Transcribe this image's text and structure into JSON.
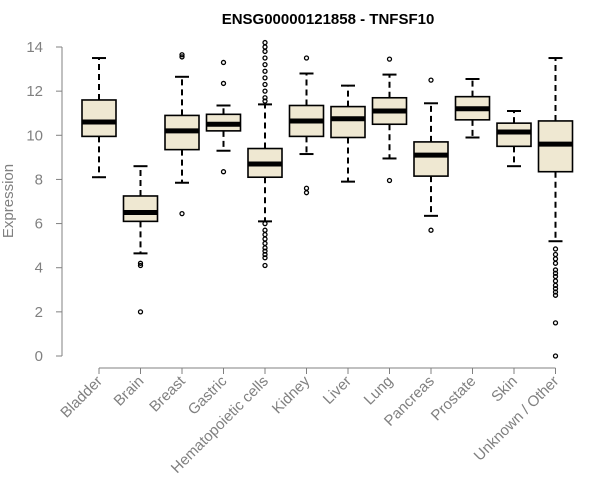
{
  "chart_data": {
    "type": "boxplot",
    "title": "ENSG00000121858 - TNFSF10",
    "xlabel": "",
    "ylabel": "Expression",
    "ylim": [
      0,
      14
    ],
    "yticks": [
      0,
      2,
      4,
      6,
      8,
      10,
      12,
      14
    ],
    "grid": false,
    "legend": "none",
    "colors": {
      "box_fill": "#efe8d2",
      "stroke": "#000000",
      "axis": "#808080",
      "label": "#808080",
      "title": "#000000"
    },
    "categories": [
      "Bladder",
      "Brain",
      "Breast",
      "Gastric",
      "Hematopoietic cells",
      "Kidney",
      "Liver",
      "Lung",
      "Pancreas",
      "Prostate",
      "Skin",
      "Unknown / Other"
    ],
    "boxes": [
      {
        "label": "Bladder",
        "whisker_low": 8.1,
        "q1": 9.95,
        "median": 10.6,
        "q3": 11.6,
        "whisker_high": 13.5,
        "outliers": []
      },
      {
        "label": "Brain",
        "whisker_low": 4.65,
        "q1": 6.1,
        "median": 6.5,
        "q3": 7.25,
        "whisker_high": 8.6,
        "outliers": [
          4.1,
          4.2,
          2.0
        ]
      },
      {
        "label": "Breast",
        "whisker_low": 7.85,
        "q1": 9.35,
        "median": 10.2,
        "q3": 10.9,
        "whisker_high": 12.65,
        "outliers": [
          13.55,
          13.65,
          6.45
        ]
      },
      {
        "label": "Gastric",
        "whisker_low": 9.3,
        "q1": 10.2,
        "median": 10.5,
        "q3": 10.95,
        "whisker_high": 11.35,
        "outliers": [
          13.3,
          12.35,
          8.35
        ]
      },
      {
        "label": "Hematopoietic cells",
        "whisker_low": 6.1,
        "q1": 8.1,
        "median": 8.7,
        "q3": 9.4,
        "whisker_high": 11.4,
        "outliers": [
          14.2,
          14.0,
          13.8,
          13.5,
          13.2,
          12.9,
          12.6,
          12.3,
          12.0,
          11.7,
          11.55,
          6.0,
          5.7,
          5.5,
          5.3,
          5.1,
          4.9,
          4.75,
          4.6,
          4.45,
          4.1
        ]
      },
      {
        "label": "Kidney",
        "whisker_low": 9.15,
        "q1": 9.95,
        "median": 10.65,
        "q3": 11.35,
        "whisker_high": 12.8,
        "outliers": [
          13.5,
          7.6,
          7.4
        ]
      },
      {
        "label": "Liver",
        "whisker_low": 7.9,
        "q1": 9.9,
        "median": 10.75,
        "q3": 11.3,
        "whisker_high": 12.25,
        "outliers": []
      },
      {
        "label": "Lung",
        "whisker_low": 8.95,
        "q1": 10.5,
        "median": 11.1,
        "q3": 11.7,
        "whisker_high": 12.75,
        "outliers": [
          13.45,
          7.95
        ]
      },
      {
        "label": "Pancreas",
        "whisker_low": 6.35,
        "q1": 8.15,
        "median": 9.1,
        "q3": 9.7,
        "whisker_high": 11.45,
        "outliers": [
          12.5,
          5.7
        ]
      },
      {
        "label": "Prostate",
        "whisker_low": 9.9,
        "q1": 10.7,
        "median": 11.2,
        "q3": 11.75,
        "whisker_high": 12.55,
        "outliers": []
      },
      {
        "label": "Skin",
        "whisker_low": 8.6,
        "q1": 9.5,
        "median": 10.15,
        "q3": 10.55,
        "whisker_high": 11.1,
        "outliers": []
      },
      {
        "label": "Unknown / Other",
        "whisker_low": 5.2,
        "q1": 8.35,
        "median": 9.6,
        "q3": 10.65,
        "whisker_high": 13.5,
        "outliers": [
          4.85,
          4.6,
          4.4,
          4.2,
          3.9,
          3.75,
          3.6,
          3.4,
          3.2,
          3.05,
          2.9,
          2.75,
          1.5,
          0.0
        ]
      }
    ]
  }
}
